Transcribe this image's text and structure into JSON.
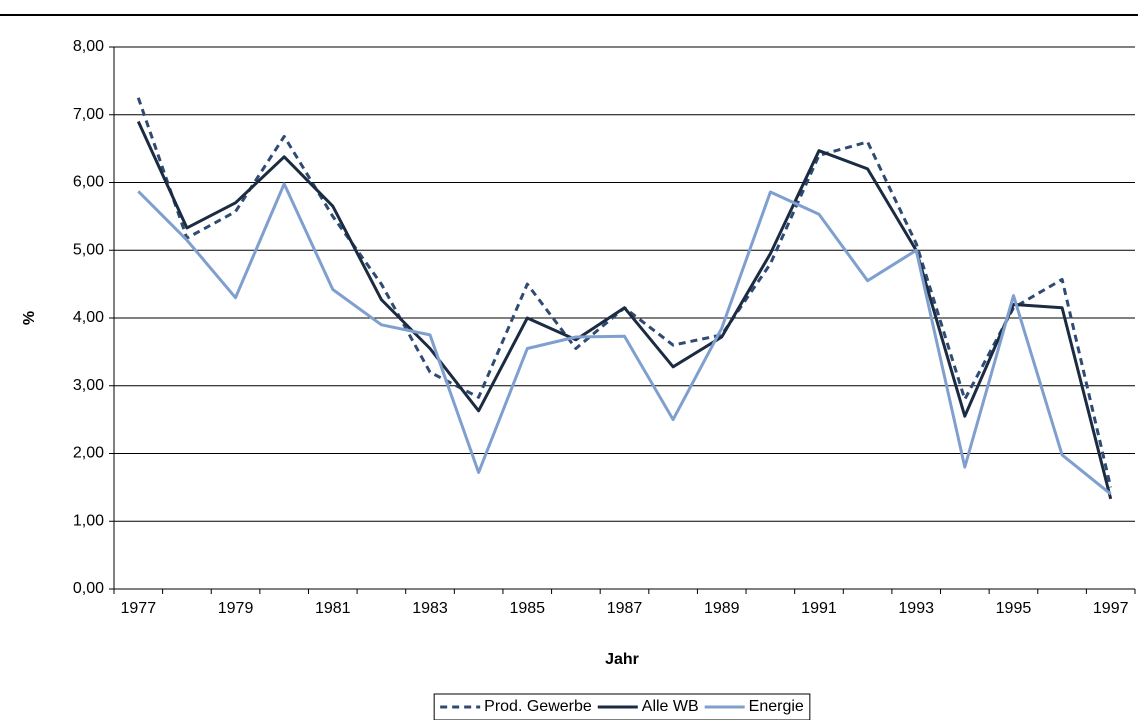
{
  "chart_data": {
    "type": "line",
    "x_label": "Jahr",
    "y_label": "%",
    "categories": [
      "1977",
      null,
      "1979",
      null,
      "1981",
      null,
      "1983",
      null,
      "1985",
      null,
      "1987",
      null,
      "1989",
      null,
      "1991",
      null,
      "1993",
      null,
      "1995",
      null,
      "1997"
    ],
    "series": [
      {
        "name": "Prod. Gewerbe",
        "color": "#2f4b73",
        "style": "dashed",
        "values": [
          7.25,
          5.18,
          5.57,
          6.68,
          5.5,
          4.5,
          3.2,
          2.83,
          4.5,
          3.55,
          4.15,
          3.6,
          3.75,
          4.8,
          6.4,
          6.6,
          5.1,
          2.8,
          4.15,
          4.57,
          1.5
        ]
      },
      {
        "name": "Alle WB",
        "color": "#1b2b42",
        "style": "solid",
        "values": [
          6.9,
          5.33,
          5.7,
          6.38,
          5.65,
          4.27,
          3.55,
          2.63,
          4.0,
          3.68,
          4.15,
          3.28,
          3.72,
          4.95,
          6.47,
          6.2,
          5.0,
          2.55,
          4.2,
          4.15,
          1.33
        ]
      },
      {
        "name": "Energie",
        "color": "#7f9fcf",
        "style": "solid",
        "values": [
          5.87,
          5.15,
          4.3,
          5.98,
          4.42,
          3.9,
          3.75,
          1.72,
          3.55,
          3.72,
          3.73,
          2.5,
          3.85,
          5.86,
          5.53,
          4.55,
          5.0,
          1.8,
          4.33,
          1.98,
          1.4
        ]
      }
    ],
    "ylim": [
      0,
      8
    ],
    "yticks": [
      {
        "value": 0,
        "label": "0,00"
      },
      {
        "value": 1,
        "label": "1,00"
      },
      {
        "value": 2,
        "label": "2,00"
      },
      {
        "value": 3,
        "label": "3,00"
      },
      {
        "value": 4,
        "label": "4,00"
      },
      {
        "value": 5,
        "label": "5,00"
      },
      {
        "value": 6,
        "label": "6,00"
      },
      {
        "value": 7,
        "label": "7,00"
      },
      {
        "value": 8,
        "label": "8,00"
      }
    ],
    "grid": true,
    "legend": "bottom"
  }
}
